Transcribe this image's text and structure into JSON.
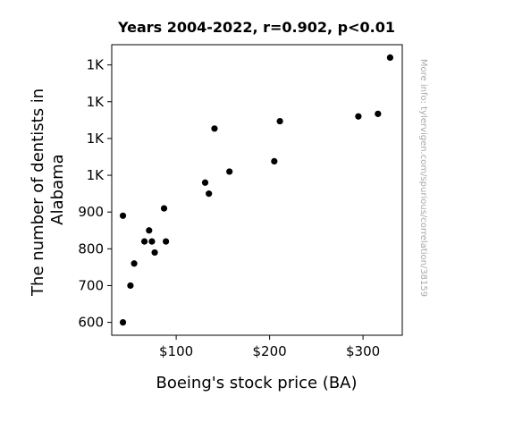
{
  "chart_data": {
    "type": "scatter",
    "title": "Years 2004-2022, r=0.902, p<0.01",
    "xlabel": "Boeing's stock price (BA)",
    "ylabel": "The number of dentists in Alabama",
    "watermark": "More info: tylervigen.com/spurious/correlation/38159",
    "xlim": [
      31,
      342
    ],
    "ylim": [
      565,
      1355
    ],
    "x_ticks": [
      {
        "value": 100,
        "label": "$100"
      },
      {
        "value": 200,
        "label": "$200"
      },
      {
        "value": 300,
        "label": "$300"
      }
    ],
    "y_ticks": [
      {
        "value": 600,
        "label": "600"
      },
      {
        "value": 700,
        "label": "700"
      },
      {
        "value": 800,
        "label": "800"
      },
      {
        "value": 900,
        "label": "900"
      },
      {
        "value": 1000,
        "label": "1K"
      },
      {
        "value": 1100,
        "label": "1K"
      },
      {
        "value": 1200,
        "label": "1K"
      },
      {
        "value": 1300,
        "label": "1K"
      }
    ],
    "grid": false,
    "legend": "none",
    "marker_color": "#000000",
    "points": [
      {
        "x": 43,
        "y": 600
      },
      {
        "x": 43,
        "y": 890
      },
      {
        "x": 51,
        "y": 700
      },
      {
        "x": 55,
        "y": 760
      },
      {
        "x": 66,
        "y": 820
      },
      {
        "x": 71,
        "y": 850
      },
      {
        "x": 74,
        "y": 820
      },
      {
        "x": 77,
        "y": 790
      },
      {
        "x": 87,
        "y": 910
      },
      {
        "x": 89,
        "y": 820
      },
      {
        "x": 131,
        "y": 980
      },
      {
        "x": 135,
        "y": 950
      },
      {
        "x": 141,
        "y": 1127
      },
      {
        "x": 157,
        "y": 1010
      },
      {
        "x": 205,
        "y": 1038
      },
      {
        "x": 211,
        "y": 1147
      },
      {
        "x": 295,
        "y": 1160
      },
      {
        "x": 316,
        "y": 1167
      },
      {
        "x": 329,
        "y": 1320
      }
    ]
  }
}
